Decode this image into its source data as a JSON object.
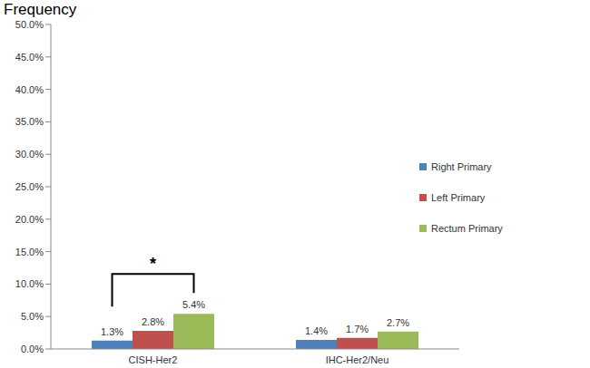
{
  "chart_data": {
    "type": "bar",
    "y_label": "Frequency",
    "categories": [
      "CISH-Her2",
      "IHC-Her2/Neu"
    ],
    "series": [
      {
        "name": "Right Primary",
        "color": "#4f81bd",
        "values": [
          1.3,
          1.4
        ],
        "value_labels": [
          "1.3%",
          "1.4%"
        ]
      },
      {
        "name": "Left Primary",
        "color": "#c0504d",
        "values": [
          2.8,
          1.7
        ],
        "value_labels": [
          "2.8%",
          "1.7%"
        ]
      },
      {
        "name": "Rectum Primary",
        "color": "#9bbb59",
        "values": [
          5.4,
          2.7
        ],
        "value_labels": [
          "5.4%",
          "2.7%"
        ]
      }
    ],
    "ylim": [
      0,
      50
    ],
    "yticks": [
      {
        "value": 0,
        "label": "0.0%"
      },
      {
        "value": 5,
        "label": "5.0%"
      },
      {
        "value": 10,
        "label": "10.0%"
      },
      {
        "value": 15,
        "label": "15.0%"
      },
      {
        "value": 20,
        "label": "20.0%"
      },
      {
        "value": 25,
        "label": "25.0%"
      },
      {
        "value": 30,
        "label": "30.0%"
      },
      {
        "value": 35,
        "label": "35.0%"
      },
      {
        "value": 40,
        "label": "40.0%"
      },
      {
        "value": 45,
        "label": "45.0%"
      },
      {
        "value": 50,
        "label": "50.0%"
      }
    ],
    "grid": false,
    "legend": "right",
    "data_labels": true,
    "annotations": [
      {
        "text": "*",
        "category": "CISH-Her2",
        "from": "Right Primary",
        "to": "Rectum Primary"
      }
    ]
  }
}
